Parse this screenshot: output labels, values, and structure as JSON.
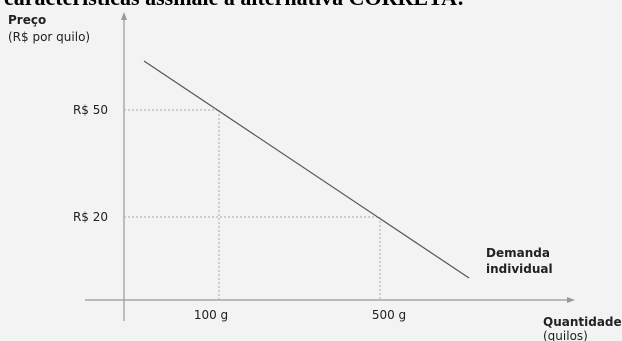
{
  "heading": "características assinale a alternativa CORRETA:",
  "chart_data": {
    "type": "line",
    "ylabel": "Preço",
    "ylabel_unit": "(R$ por quilo)",
    "xlabel": "Quantidade",
    "xlabel_unit": "(quilos)",
    "y_ticks": [
      "R$ 50",
      "R$ 20"
    ],
    "x_ticks": [
      "100 g",
      "500 g"
    ],
    "series": [
      {
        "name": "Demanda individual",
        "label_lines": [
          "Demanda",
          "individual"
        ],
        "points": [
          {
            "x": 100,
            "y": 50
          },
          {
            "x": 500,
            "y": 20
          }
        ]
      }
    ],
    "reference_points": [
      {
        "x": 100,
        "y": 50
      },
      {
        "x": 500,
        "y": 20
      }
    ],
    "grid": false
  }
}
